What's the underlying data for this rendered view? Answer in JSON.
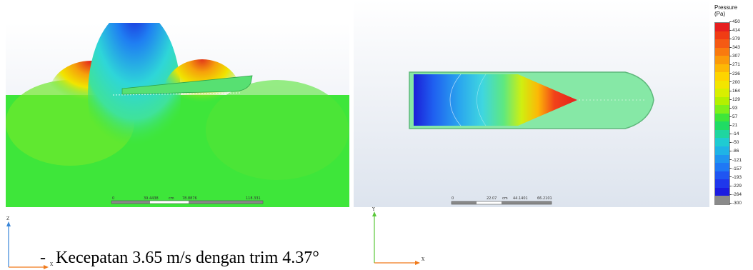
{
  "left_view": {
    "scale": {
      "labels": [
        "0",
        "39.4438",
        "cm",
        "78.8876",
        "118.331"
      ]
    }
  },
  "right_view": {
    "scale": {
      "labels": [
        "0",
        "22.07",
        "cm",
        "44.1401",
        "66.2101"
      ]
    }
  },
  "legend": {
    "title_line1": "Pressure",
    "title_line2": "(Pa)",
    "labels": [
      "450",
      "414",
      "379",
      "343",
      "307",
      "271",
      "236",
      "200",
      "164",
      "129",
      "93",
      "57",
      "21",
      "-14",
      "-50",
      "-86",
      "-121",
      "-157",
      "-193",
      "-229",
      "-264",
      "-300"
    ],
    "colors": [
      "#e61e1e",
      "#f03c14",
      "#f55a14",
      "#f97a0f",
      "#fb9a0a",
      "#fdb805",
      "#fed400",
      "#f3e500",
      "#d8ef00",
      "#b4f000",
      "#7ef01a",
      "#3ee63a",
      "#20dc64",
      "#1fd6a0",
      "#1fcbd2",
      "#1fb3e6",
      "#1f94f0",
      "#1f78f5",
      "#1f55f2",
      "#1f37ec",
      "#1b1be0",
      "#8a8a8a"
    ]
  },
  "axes_left": {
    "vertical": "Z",
    "horizontal": "X"
  },
  "axes_right": {
    "vertical": "Y",
    "horizontal": "X"
  },
  "caption": {
    "bullet": "-",
    "text": "Kecepatan 3.65 m/s dengan trim 4.37°"
  }
}
